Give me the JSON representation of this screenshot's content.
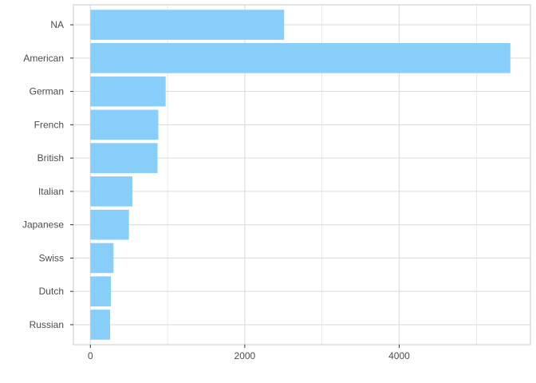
{
  "chart_data": {
    "type": "bar",
    "orientation": "horizontal",
    "title": "",
    "xlabel": "",
    "ylabel": "",
    "categories": [
      "NA",
      "American",
      "German",
      "French",
      "British",
      "Italian",
      "Japanese",
      "Swiss",
      "Dutch",
      "Russian"
    ],
    "values": [
      2510,
      5440,
      975,
      880,
      870,
      545,
      500,
      300,
      265,
      255
    ],
    "xlim": [
      -220,
      5700
    ],
    "xticks": [
      0,
      2000,
      4000
    ],
    "xtick_labels": [
      "0",
      "2000",
      "4000"
    ],
    "grid": true,
    "legend": "none",
    "bar_color": "#87CEFA",
    "grid_color": "#dddddd",
    "panel_border_color": "#c8c8c8",
    "text_color": "#4d4d4d"
  }
}
